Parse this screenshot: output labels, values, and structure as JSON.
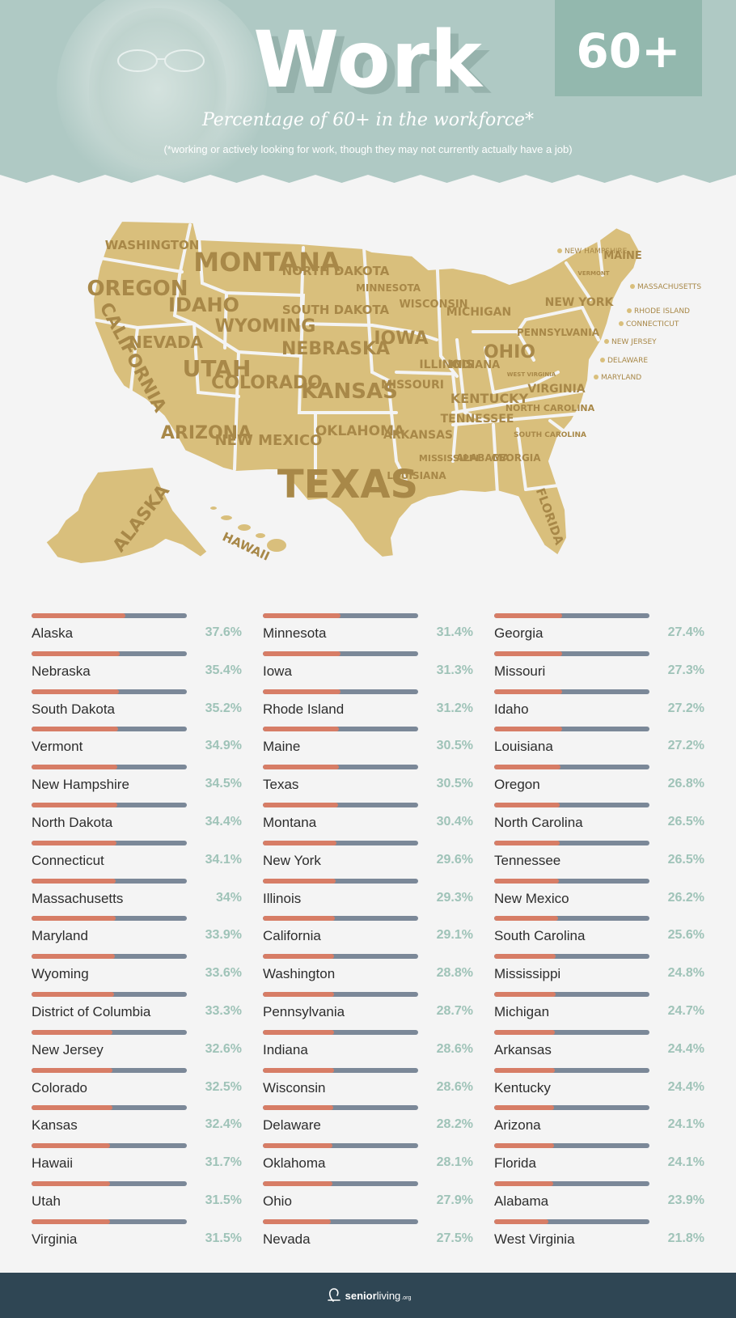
{
  "header": {
    "title": "Work",
    "badge": "60+",
    "subtitle": "Percentage of 60+ in the workforce*",
    "footnote": "(*working or actively looking for work, though they may not currently actually have a job)"
  },
  "map_labels": {
    "washington": "WASHINGTON",
    "oregon": "OREGON",
    "california": "CALIFORNIA",
    "nevada": "NEVADA",
    "idaho": "IDAHO",
    "montana": "MONTANA",
    "wyoming": "WYOMING",
    "utah": "UTAH",
    "arizona": "ARIZONA",
    "colorado": "COLORADO",
    "new_mexico": "NEW MEXICO",
    "north_dakota": "NORTH DAKOTA",
    "south_dakota": "SOUTH DAKOTA",
    "nebraska": "NEBRASKA",
    "kansas": "KANSAS",
    "oklahoma": "OKLAHOMA",
    "texas": "TEXAS",
    "minnesota": "MINNESOTA",
    "iowa": "IOWA",
    "missouri": "MISSOURI",
    "arkansas": "ARKANSAS",
    "louisiana": "LOUISIANA",
    "wisconsin": "WISCONSIN",
    "illinois": "ILLINOIS",
    "michigan": "MICHIGAN",
    "indiana": "INDIANA",
    "ohio": "OHIO",
    "kentucky": "KENTUCKY",
    "tennessee": "TENNESSEE",
    "mississippi": "MISSISSIPPI",
    "alabama": "ALABAMA",
    "georgia": "GEORGIA",
    "florida": "FLORIDA",
    "south_carolina": "SOUTH CAROLINA",
    "north_carolina": "NORTH CAROLINA",
    "virginia": "VIRGINIA",
    "west_virginia": "WEST VIRGINIA",
    "pennsylvania": "PENNSYLVANIA",
    "new_york": "NEW YORK",
    "maine": "MAINE",
    "vermont": "VERMONT",
    "new_hampshire": "NEW HAMPSHIRE",
    "massachusetts": "MASSACHUSETTS",
    "rhode_island": "RHODE ISLAND",
    "connecticut": "CONNECTICUT",
    "new_jersey": "NEW JERSEY",
    "delaware": "DELAWARE",
    "maryland": "MARYLAND",
    "alaska": "ALASKA",
    "hawaii": "HAWAII"
  },
  "chart_data": {
    "type": "bar",
    "orientation": "horizontal",
    "unit": "%",
    "xlim": [
      0,
      100
    ],
    "colors": {
      "fill": "#d77d66",
      "track": "#7b8898",
      "value_text": "#9fc3b8"
    },
    "items": [
      {
        "name": "Alaska",
        "value": 37.6,
        "label": "37.6%"
      },
      {
        "name": "Nebraska",
        "value": 35.4,
        "label": "35.4%"
      },
      {
        "name": "South Dakota",
        "value": 35.2,
        "label": "35.2%"
      },
      {
        "name": "Vermont",
        "value": 34.9,
        "label": "34.9%"
      },
      {
        "name": "New Hampshire",
        "value": 34.5,
        "label": "34.5%"
      },
      {
        "name": "North Dakota",
        "value": 34.4,
        "label": "34.4%"
      },
      {
        "name": "Connecticut",
        "value": 34.1,
        "label": "34.1%"
      },
      {
        "name": "Massachusetts",
        "value": 34.0,
        "label": "34%"
      },
      {
        "name": "Maryland",
        "value": 33.9,
        "label": "33.9%"
      },
      {
        "name": "Wyoming",
        "value": 33.6,
        "label": "33.6%"
      },
      {
        "name": "District of Columbia",
        "value": 33.3,
        "label": "33.3%"
      },
      {
        "name": "New Jersey",
        "value": 32.6,
        "label": "32.6%"
      },
      {
        "name": "Colorado",
        "value": 32.5,
        "label": "32.5%"
      },
      {
        "name": "Kansas",
        "value": 32.4,
        "label": "32.4%"
      },
      {
        "name": "Hawaii",
        "value": 31.7,
        "label": "31.7%"
      },
      {
        "name": "Utah",
        "value": 31.5,
        "label": "31.5%"
      },
      {
        "name": "Virginia",
        "value": 31.5,
        "label": "31.5%"
      },
      {
        "name": "Minnesota",
        "value": 31.4,
        "label": "31.4%"
      },
      {
        "name": "Iowa",
        "value": 31.3,
        "label": "31.3%"
      },
      {
        "name": "Rhode Island",
        "value": 31.2,
        "label": "31.2%"
      },
      {
        "name": "Maine",
        "value": 30.5,
        "label": "30.5%"
      },
      {
        "name": "Texas",
        "value": 30.5,
        "label": "30.5%"
      },
      {
        "name": "Montana",
        "value": 30.4,
        "label": "30.4%"
      },
      {
        "name": "New York",
        "value": 29.6,
        "label": "29.6%"
      },
      {
        "name": "Illinois",
        "value": 29.3,
        "label": "29.3%"
      },
      {
        "name": "California",
        "value": 29.1,
        "label": "29.1%"
      },
      {
        "name": "Washington",
        "value": 28.8,
        "label": "28.8%"
      },
      {
        "name": "Pennsylvania",
        "value": 28.7,
        "label": "28.7%"
      },
      {
        "name": "Indiana",
        "value": 28.6,
        "label": "28.6%"
      },
      {
        "name": "Wisconsin",
        "value": 28.6,
        "label": "28.6%"
      },
      {
        "name": "Delaware",
        "value": 28.2,
        "label": "28.2%"
      },
      {
        "name": "Oklahoma",
        "value": 28.1,
        "label": "28.1%"
      },
      {
        "name": "Ohio",
        "value": 27.9,
        "label": "27.9%"
      },
      {
        "name": "Nevada",
        "value": 27.5,
        "label": "27.5%"
      },
      {
        "name": "Georgia",
        "value": 27.4,
        "label": "27.4%"
      },
      {
        "name": "Missouri",
        "value": 27.3,
        "label": "27.3%"
      },
      {
        "name": "Idaho",
        "value": 27.2,
        "label": "27.2%"
      },
      {
        "name": "Louisiana",
        "value": 27.2,
        "label": "27.2%"
      },
      {
        "name": "Oregon",
        "value": 26.8,
        "label": "26.8%"
      },
      {
        "name": "North Carolina",
        "value": 26.5,
        "label": "26.5%"
      },
      {
        "name": "Tennessee",
        "value": 26.5,
        "label": "26.5%"
      },
      {
        "name": "New Mexico",
        "value": 26.2,
        "label": "26.2%"
      },
      {
        "name": "South Carolina",
        "value": 25.6,
        "label": "25.6%"
      },
      {
        "name": "Mississippi",
        "value": 24.8,
        "label": "24.8%"
      },
      {
        "name": "Michigan",
        "value": 24.7,
        "label": "24.7%"
      },
      {
        "name": "Arkansas",
        "value": 24.4,
        "label": "24.4%"
      },
      {
        "name": "Kentucky",
        "value": 24.4,
        "label": "24.4%"
      },
      {
        "name": "Arizona",
        "value": 24.1,
        "label": "24.1%"
      },
      {
        "name": "Florida",
        "value": 24.1,
        "label": "24.1%"
      },
      {
        "name": "Alabama",
        "value": 23.9,
        "label": "23.9%"
      },
      {
        "name": "West Virginia",
        "value": 21.8,
        "label": "21.8%"
      }
    ]
  },
  "footer": {
    "brand_bold": "senior",
    "brand_light": "living",
    "brand_suffix": ".org"
  }
}
